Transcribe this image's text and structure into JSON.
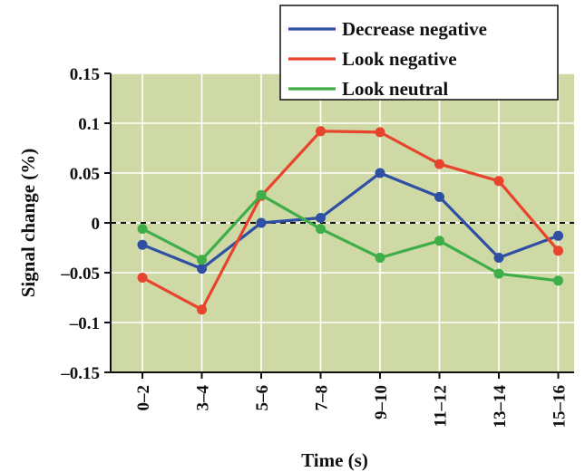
{
  "chart_data": {
    "type": "line",
    "xlabel": "Time (s)",
    "ylabel": "Signal change (%)",
    "categories": [
      "0–2",
      "3–4",
      "5–6",
      "7–8",
      "9–10",
      "11–12",
      "13–14",
      "15–16"
    ],
    "ylim": [
      -0.15,
      0.15
    ],
    "yticks": [
      0.15,
      0.1,
      0.05,
      0,
      -0.05,
      -0.1,
      -0.15
    ],
    "ytick_labels": [
      "0.15",
      "0.1",
      "0.05",
      "0",
      "–0.05",
      "–0.1",
      "–0.15"
    ],
    "grid": true,
    "zero_line": "dashed",
    "legend_position": "top-right",
    "background_color": "#cfd9a6",
    "series": [
      {
        "name": "Decrease negative",
        "color": "#2e4fa3",
        "values": [
          -0.022,
          -0.046,
          0.0,
          0.005,
          0.05,
          0.026,
          -0.035,
          -0.013
        ]
      },
      {
        "name": "Look negative",
        "color": "#e8432c",
        "values": [
          -0.055,
          -0.087,
          0.027,
          0.092,
          0.091,
          0.059,
          0.042,
          -0.028
        ]
      },
      {
        "name": "Look neutral",
        "color": "#3fae49",
        "values": [
          -0.006,
          -0.037,
          0.028,
          -0.006,
          -0.035,
          -0.018,
          -0.051,
          -0.058
        ]
      }
    ]
  }
}
